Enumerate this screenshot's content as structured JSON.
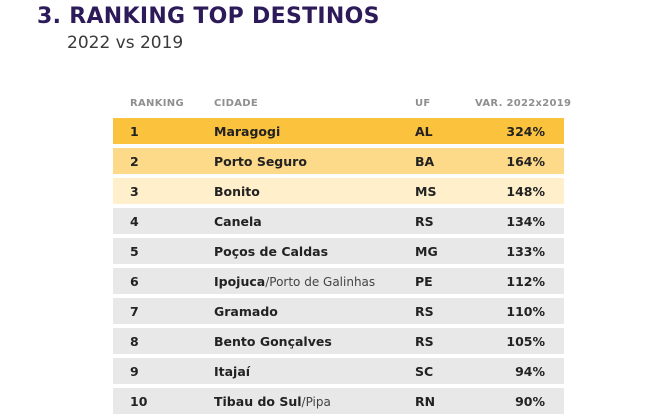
{
  "header": {
    "title": "3. RANKING TOP DESTINOS",
    "subtitle": "2022 vs 2019"
  },
  "table": {
    "columns": [
      "RANKING",
      "CIDADE",
      "UF",
      "VAR. 2022x2019"
    ],
    "rows": [
      {
        "rank": "1",
        "city": "Maragogi",
        "city_extra": "",
        "uf": "AL",
        "var": "324%"
      },
      {
        "rank": "2",
        "city": "Porto Seguro",
        "city_extra": "",
        "uf": "BA",
        "var": "164%"
      },
      {
        "rank": "3",
        "city": "Bonito",
        "city_extra": "",
        "uf": "MS",
        "var": "148%"
      },
      {
        "rank": "4",
        "city": "Canela",
        "city_extra": "",
        "uf": "RS",
        "var": "134%"
      },
      {
        "rank": "5",
        "city": "Poços de Caldas",
        "city_extra": "",
        "uf": "MG",
        "var": "133%"
      },
      {
        "rank": "6",
        "city": "Ipojuca",
        "city_extra": "/Porto de Galinhas",
        "uf": "PE",
        "var": "112%"
      },
      {
        "rank": "7",
        "city": "Gramado",
        "city_extra": "",
        "uf": "RS",
        "var": "110%"
      },
      {
        "rank": "8",
        "city": "Bento Gonçalves",
        "city_extra": "",
        "uf": "RS",
        "var": "105%"
      },
      {
        "rank": "9",
        "city": "Itajaí",
        "city_extra": "",
        "uf": "SC",
        "var": "94%"
      },
      {
        "rank": "10",
        "city": "Tibau do Sul",
        "city_extra": "/Pipa",
        "uf": "RN",
        "var": "90%"
      }
    ]
  },
  "colors": {
    "title": "#2c1a59",
    "rank1": "#fbc23d",
    "rank2": "#fdd98a",
    "rank3": "#fff0cb",
    "other": "#e8e8e8"
  }
}
